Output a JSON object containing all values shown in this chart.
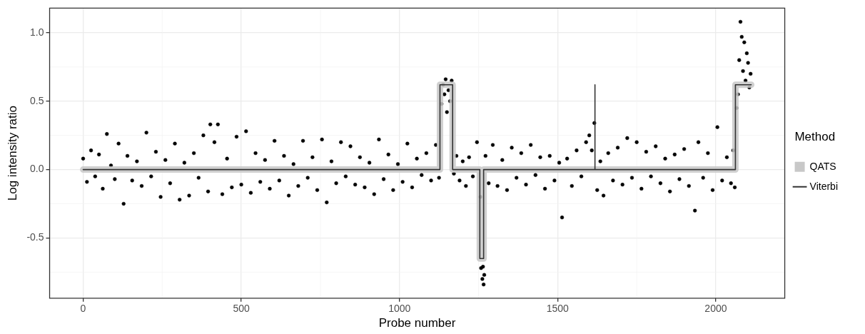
{
  "chart_data": {
    "type": "scatter",
    "xlabel": "Probe number",
    "ylabel": "Log intensity ratio",
    "legend_title": "Method",
    "legend": "right",
    "grid": true,
    "xlim": [
      -106,
      2218
    ],
    "xticks": [
      0,
      500,
      1000,
      1500,
      2000
    ],
    "ylim": [
      -0.94,
      1.18
    ],
    "yticks": [
      {
        "value": -0.5,
        "label": "-0.5"
      },
      {
        "value": 0,
        "label": "0.0"
      },
      {
        "value": 0.5,
        "label": "0.5"
      },
      {
        "value": 1,
        "label": "1.0"
      }
    ],
    "series": [
      {
        "type": "scatter",
        "color": "#000000",
        "marker": "circle",
        "x": [
          0,
          12,
          25,
          38,
          50,
          62,
          75,
          88,
          100,
          112,
          128,
          140,
          155,
          170,
          185,
          200,
          215,
          230,
          245,
          260,
          275,
          290,
          305,
          320,
          335,
          350,
          365,
          380,
          395,
          402,
          415,
          426,
          440,
          455,
          470,
          485,
          500,
          515,
          530,
          545,
          560,
          575,
          590,
          605,
          620,
          635,
          650,
          665,
          680,
          695,
          710,
          725,
          740,
          755,
          770,
          785,
          800,
          815,
          830,
          845,
          860,
          875,
          890,
          905,
          920,
          935,
          950,
          965,
          980,
          995,
          1010,
          1025,
          1040,
          1055,
          1070,
          1085,
          1100,
          1115,
          1125,
          1133,
          1138,
          1142,
          1146,
          1150,
          1155,
          1160,
          1165,
          1172,
          1180,
          1190,
          1200,
          1210,
          1220,
          1232,
          1245,
          1256,
          1258,
          1262,
          1264,
          1266,
          1268,
          1272,
          1282,
          1295,
          1310,
          1325,
          1340,
          1355,
          1370,
          1385,
          1400,
          1415,
          1430,
          1445,
          1460,
          1475,
          1490,
          1505,
          1514,
          1530,
          1545,
          1560,
          1575,
          1590,
          1600,
          1608,
          1616,
          1625,
          1635,
          1645,
          1660,
          1675,
          1690,
          1705,
          1720,
          1735,
          1750,
          1765,
          1780,
          1795,
          1810,
          1825,
          1840,
          1855,
          1870,
          1885,
          1900,
          1915,
          1934,
          1945,
          1960,
          1975,
          1990,
          2005,
          2020,
          2035,
          2048,
          2055,
          2060,
          2066,
          2070,
          2074,
          2078,
          2082,
          2086,
          2090,
          2094,
          2098,
          2102,
          2106,
          2110
        ],
        "values": [
          0.08,
          -0.09,
          0.14,
          -0.05,
          0.11,
          -0.14,
          0.26,
          0.03,
          -0.07,
          0.19,
          -0.25,
          0.1,
          -0.08,
          0.06,
          -0.12,
          0.27,
          -0.05,
          0.13,
          -0.2,
          0.07,
          -0.1,
          0.19,
          -0.22,
          0.05,
          -0.19,
          0.12,
          -0.06,
          0.25,
          -0.16,
          0.33,
          0.2,
          0.33,
          -0.18,
          0.08,
          -0.13,
          0.24,
          -0.11,
          0.28,
          -0.17,
          0.12,
          -0.09,
          0.07,
          -0.14,
          0.21,
          -0.08,
          0.1,
          -0.19,
          0.04,
          -0.12,
          0.21,
          -0.06,
          0.09,
          -0.15,
          0.22,
          -0.24,
          0.06,
          -0.1,
          0.2,
          -0.05,
          0.17,
          -0.11,
          0.09,
          -0.13,
          0.05,
          -0.18,
          0.22,
          -0.07,
          0.11,
          -0.15,
          0.04,
          -0.09,
          0.19,
          -0.13,
          0.08,
          -0.04,
          0.12,
          -0.08,
          0.18,
          -0.06,
          0.48,
          0.62,
          0.55,
          0.66,
          0.42,
          0.58,
          0.5,
          0.65,
          -0.03,
          0.1,
          -0.08,
          0.06,
          -0.12,
          0.09,
          -0.05,
          0.2,
          -0.2,
          -0.72,
          -0.8,
          -0.71,
          -0.84,
          -0.77,
          0.1,
          -0.1,
          0.18,
          -0.12,
          0.07,
          -0.15,
          0.16,
          -0.06,
          0.12,
          -0.11,
          0.18,
          -0.04,
          0.09,
          -0.14,
          0.1,
          -0.08,
          0.05,
          -0.35,
          0.08,
          -0.12,
          0.14,
          -0.05,
          0.2,
          0.25,
          0.14,
          0.34,
          -0.15,
          0.06,
          -0.19,
          0.12,
          -0.08,
          0.16,
          -0.11,
          0.23,
          -0.06,
          0.2,
          -0.14,
          0.13,
          -0.05,
          0.17,
          -0.1,
          0.08,
          -0.16,
          0.11,
          -0.07,
          0.15,
          -0.12,
          -0.3,
          0.2,
          -0.06,
          0.12,
          -0.15,
          0.31,
          -0.08,
          0.09,
          -0.1,
          0.14,
          -0.13,
          0.45,
          0.55,
          0.8,
          1.08,
          0.97,
          0.72,
          0.93,
          0.65,
          0.85,
          0.78,
          0.6,
          0.7
        ]
      },
      {
        "type": "line",
        "name": "QATS",
        "color": "#c8c8c8",
        "marker": "none",
        "line_style": "solid",
        "x": [
          0,
          1128,
          1128,
          1168,
          1168,
          1254,
          1254,
          1266,
          1266,
          2062,
          2062,
          2112
        ],
        "values": [
          0,
          0,
          0.62,
          0.62,
          0,
          0,
          -0.65,
          -0.65,
          0,
          0,
          0.62,
          0.62
        ]
      },
      {
        "type": "line",
        "name": "Viterbi",
        "color": "#333333",
        "marker": "none",
        "line_style": "solid",
        "x": [
          0,
          1128,
          1128,
          1168,
          1168,
          1254,
          1254,
          1266,
          1266,
          1618,
          1618,
          1618,
          2062,
          2062,
          2112
        ],
        "values": [
          0,
          0,
          0.62,
          0.62,
          0,
          0,
          -0.65,
          -0.65,
          0,
          0,
          0.62,
          0,
          0,
          0.62,
          0.62
        ]
      }
    ]
  }
}
